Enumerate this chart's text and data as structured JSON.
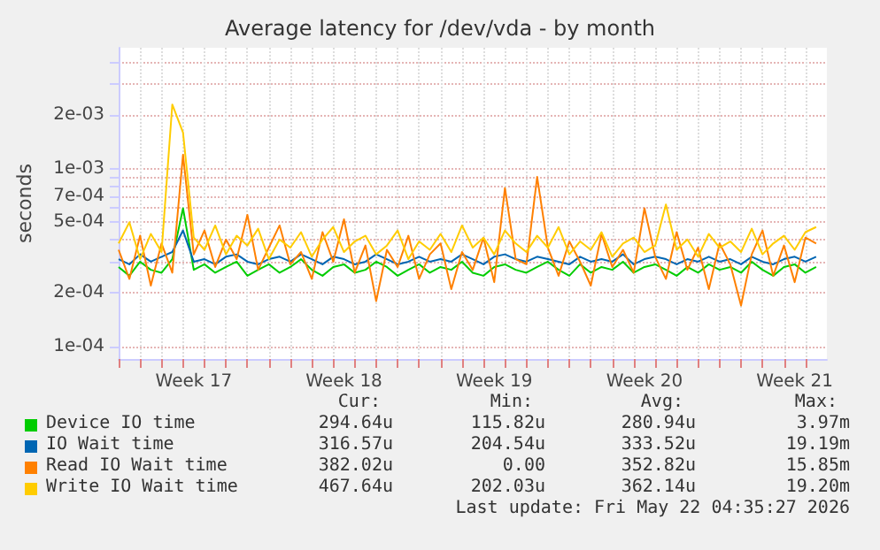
{
  "chart_data": {
    "type": "line",
    "title": "Average latency for /dev/vda - by month",
    "ylabel": "seconds",
    "log": true,
    "grid": true,
    "legend": "bottom",
    "marker": "none",
    "line_style": "solid",
    "xlim": [
      "2026-04-20",
      "2026-05-23"
    ],
    "xticks": [
      {
        "value": "2026-04-20",
        "label": null
      },
      {
        "value": "2026-04-21",
        "label": null
      },
      {
        "value": "2026-04-22",
        "label": null
      },
      {
        "value": "2026-04-23",
        "label": null
      },
      {
        "value": "2026-04-23T12:00",
        "label": "Week 17"
      },
      {
        "value": "2026-04-24",
        "label": null
      },
      {
        "value": "2026-04-25",
        "label": null
      },
      {
        "value": "2026-04-26",
        "label": null
      },
      {
        "value": "2026-04-27",
        "label": null
      },
      {
        "value": "2026-04-28",
        "label": null
      },
      {
        "value": "2026-04-29",
        "label": null
      },
      {
        "value": "2026-04-30",
        "label": null
      },
      {
        "value": "2026-04-30T12:00",
        "label": "Week 18"
      },
      {
        "value": "2026-05-01",
        "label": null
      },
      {
        "value": "2026-05-02",
        "label": null
      },
      {
        "value": "2026-05-03",
        "label": null
      },
      {
        "value": "2026-05-04",
        "label": null
      },
      {
        "value": "2026-05-05",
        "label": null
      },
      {
        "value": "2026-05-06",
        "label": null
      },
      {
        "value": "2026-05-07",
        "label": null
      },
      {
        "value": "2026-05-07T12:00",
        "label": "Week 19"
      },
      {
        "value": "2026-05-08",
        "label": null
      },
      {
        "value": "2026-05-09",
        "label": null
      },
      {
        "value": "2026-05-10",
        "label": null
      },
      {
        "value": "2026-05-11",
        "label": null
      },
      {
        "value": "2026-05-12",
        "label": null
      },
      {
        "value": "2026-05-13",
        "label": null
      },
      {
        "value": "2026-05-14",
        "label": null
      },
      {
        "value": "2026-05-14T12:00",
        "label": "Week 20"
      },
      {
        "value": "2026-05-15",
        "label": null
      },
      {
        "value": "2026-05-16",
        "label": null
      },
      {
        "value": "2026-05-17",
        "label": null
      },
      {
        "value": "2026-05-18",
        "label": null
      },
      {
        "value": "2026-05-19",
        "label": null
      },
      {
        "value": "2026-05-20",
        "label": null
      },
      {
        "value": "2026-05-21",
        "label": null
      },
      {
        "value": "2026-05-21T12:00",
        "label": "Week 21"
      },
      {
        "value": "2026-05-22",
        "label": null
      }
    ],
    "ylim": [
      8.5e-05,
      0.0048
    ],
    "yticks": [
      {
        "value": 0.0001,
        "label": "1e-04"
      },
      {
        "value": 0.0002,
        "label": "2e-04"
      },
      {
        "value": 0.0003,
        "label": null
      },
      {
        "value": 0.0004,
        "label": null
      },
      {
        "value": 0.0005,
        "label": "5e-04"
      },
      {
        "value": 0.0006,
        "label": null
      },
      {
        "value": 0.0007,
        "label": "7e-04"
      },
      {
        "value": 0.0008,
        "label": null
      },
      {
        "value": 0.0009,
        "label": null
      },
      {
        "value": 0.001,
        "label": "1e-03"
      },
      {
        "value": 0.002,
        "label": "2e-03"
      },
      {
        "value": 0.003,
        "label": null
      },
      {
        "value": 0.004,
        "label": null
      }
    ],
    "x": [
      "2026-04-20T00:00",
      "2026-04-20T12:00",
      "2026-04-21T00:00",
      "2026-04-21T12:00",
      "2026-04-22T00:00",
      "2026-04-22T12:00",
      "2026-04-23T00:00",
      "2026-04-23T12:00",
      "2026-04-24T00:00",
      "2026-04-24T12:00",
      "2026-04-25T00:00",
      "2026-04-25T12:00",
      "2026-04-26T00:00",
      "2026-04-26T12:00",
      "2026-04-27T00:00",
      "2026-04-27T12:00",
      "2026-04-28T00:00",
      "2026-04-28T12:00",
      "2026-04-29T00:00",
      "2026-04-29T12:00",
      "2026-04-30T00:00",
      "2026-04-30T12:00",
      "2026-05-01T00:00",
      "2026-05-01T12:00",
      "2026-05-02T00:00",
      "2026-05-02T12:00",
      "2026-05-03T00:00",
      "2026-05-03T12:00",
      "2026-05-04T00:00",
      "2026-05-04T12:00",
      "2026-05-05T00:00",
      "2026-05-05T12:00",
      "2026-05-06T00:00",
      "2026-05-06T12:00",
      "2026-05-07T00:00",
      "2026-05-07T12:00",
      "2026-05-08T00:00",
      "2026-05-08T12:00",
      "2026-05-09T00:00",
      "2026-05-09T12:00",
      "2026-05-10T00:00",
      "2026-05-10T12:00",
      "2026-05-11T00:00",
      "2026-05-11T12:00",
      "2026-05-12T00:00",
      "2026-05-12T12:00",
      "2026-05-13T00:00",
      "2026-05-13T12:00",
      "2026-05-14T00:00",
      "2026-05-14T12:00",
      "2026-05-15T00:00",
      "2026-05-15T12:00",
      "2026-05-16T00:00",
      "2026-05-16T12:00",
      "2026-05-17T00:00",
      "2026-05-17T12:00",
      "2026-05-18T00:00",
      "2026-05-18T12:00",
      "2026-05-19T00:00",
      "2026-05-19T12:00",
      "2026-05-20T00:00",
      "2026-05-20T12:00",
      "2026-05-21T00:00",
      "2026-05-21T12:00",
      "2026-05-22T00:00",
      "2026-05-22T12:00"
    ],
    "series": [
      {
        "name": "Device IO time",
        "color": "#00cc00",
        "values": [
          0.00028,
          0.00025,
          0.0003,
          0.00027,
          0.00026,
          0.00031,
          0.0006,
          0.00027,
          0.00029,
          0.00026,
          0.00028,
          0.0003,
          0.00025,
          0.00027,
          0.00029,
          0.00026,
          0.00028,
          0.00031,
          0.00027,
          0.00025,
          0.00028,
          0.00029,
          0.00026,
          0.00027,
          0.0003,
          0.00028,
          0.00025,
          0.00027,
          0.00029,
          0.00026,
          0.00028,
          0.00027,
          0.0003,
          0.00026,
          0.00025,
          0.00028,
          0.00029,
          0.00027,
          0.00026,
          0.00028,
          0.0003,
          0.00027,
          0.00025,
          0.00029,
          0.00026,
          0.00028,
          0.00027,
          0.0003,
          0.00026,
          0.00028,
          0.00029,
          0.00027,
          0.00025,
          0.00028,
          0.00026,
          0.00029,
          0.00027,
          0.00028,
          0.00026,
          0.0003,
          0.00027,
          0.00025,
          0.00028,
          0.00029,
          0.00026,
          0.00028
        ]
      },
      {
        "name": "IO Wait time",
        "color": "#0066b3",
        "values": [
          0.00031,
          0.00029,
          0.00033,
          0.0003,
          0.00032,
          0.00034,
          0.00045,
          0.0003,
          0.00031,
          0.00029,
          0.00032,
          0.00033,
          0.0003,
          0.00029,
          0.00031,
          0.00032,
          0.0003,
          0.00033,
          0.00031,
          0.00029,
          0.00032,
          0.00031,
          0.00029,
          0.0003,
          0.00033,
          0.00031,
          0.00029,
          0.0003,
          0.00032,
          0.0003,
          0.00031,
          0.0003,
          0.00033,
          0.00031,
          0.00029,
          0.00032,
          0.00033,
          0.00031,
          0.0003,
          0.00032,
          0.00031,
          0.0003,
          0.00029,
          0.00032,
          0.0003,
          0.00031,
          0.0003,
          0.00033,
          0.00029,
          0.00031,
          0.00032,
          0.00031,
          0.00029,
          0.00031,
          0.0003,
          0.00032,
          0.0003,
          0.00031,
          0.00029,
          0.00032,
          0.0003,
          0.00029,
          0.00031,
          0.00032,
          0.0003,
          0.00032
        ]
      },
      {
        "name": "Read IO Wait time",
        "color": "#ff8000",
        "values": [
          0.00035,
          0.00024,
          0.00042,
          0.00022,
          0.00038,
          0.00026,
          0.0012,
          0.00033,
          0.00045,
          0.00028,
          0.0004,
          0.00031,
          0.00055,
          0.00027,
          0.00036,
          0.00048,
          0.00029,
          0.00034,
          0.00024,
          0.00044,
          0.0003,
          0.00052,
          0.00026,
          0.00037,
          0.00018,
          0.00035,
          0.00028,
          0.00042,
          0.00024,
          0.00033,
          0.00038,
          0.00021,
          0.00034,
          0.00027,
          0.00041,
          0.00023,
          0.00078,
          0.00031,
          0.00029,
          0.0009,
          0.00036,
          0.00025,
          0.00039,
          0.0003,
          0.00022,
          0.00043,
          0.00028,
          0.00035,
          0.00026,
          0.0006,
          0.00032,
          0.00024,
          0.00044,
          0.00027,
          0.00036,
          0.00021,
          0.00038,
          0.00029,
          0.00017,
          0.00033,
          0.00045,
          0.00025,
          0.00037,
          0.00023,
          0.00041,
          0.00038
        ]
      },
      {
        "name": "Write IO Wait time",
        "color": "#ffcc00",
        "values": [
          0.00038,
          0.0005,
          0.00031,
          0.00043,
          0.00034,
          0.0023,
          0.0016,
          0.00041,
          0.00035,
          0.00048,
          0.00033,
          0.00042,
          0.00037,
          0.00046,
          0.00031,
          0.0004,
          0.00036,
          0.00044,
          0.00032,
          0.0004,
          0.00047,
          0.00034,
          0.00039,
          0.00042,
          0.00033,
          0.00037,
          0.00045,
          0.00031,
          0.00039,
          0.00035,
          0.00043,
          0.00034,
          0.00048,
          0.00036,
          0.00041,
          0.00033,
          0.00045,
          0.00038,
          0.00034,
          0.00042,
          0.00036,
          0.00047,
          0.00033,
          0.00039,
          0.00035,
          0.00044,
          0.00032,
          0.00038,
          0.00041,
          0.00034,
          0.00037,
          0.00063,
          0.00035,
          0.0004,
          0.00032,
          0.00043,
          0.00036,
          0.00039,
          0.00034,
          0.00046,
          0.00033,
          0.00038,
          0.00042,
          0.00035,
          0.00044,
          0.00047
        ]
      }
    ],
    "annotations": [
      "Cur:",
      "Min:",
      "Avg:",
      "Max:",
      "294.64u",
      "115.82u",
      "280.94u",
      "3.97m",
      "316.57u",
      "204.54u",
      "333.52u",
      "19.19m",
      "382.02u",
      "0.00",
      "352.82u",
      "15.85m",
      "467.64u",
      "202.03u",
      "362.14u",
      "19.20m",
      "Last update: Fri May 22 04:35:27 2026"
    ]
  }
}
